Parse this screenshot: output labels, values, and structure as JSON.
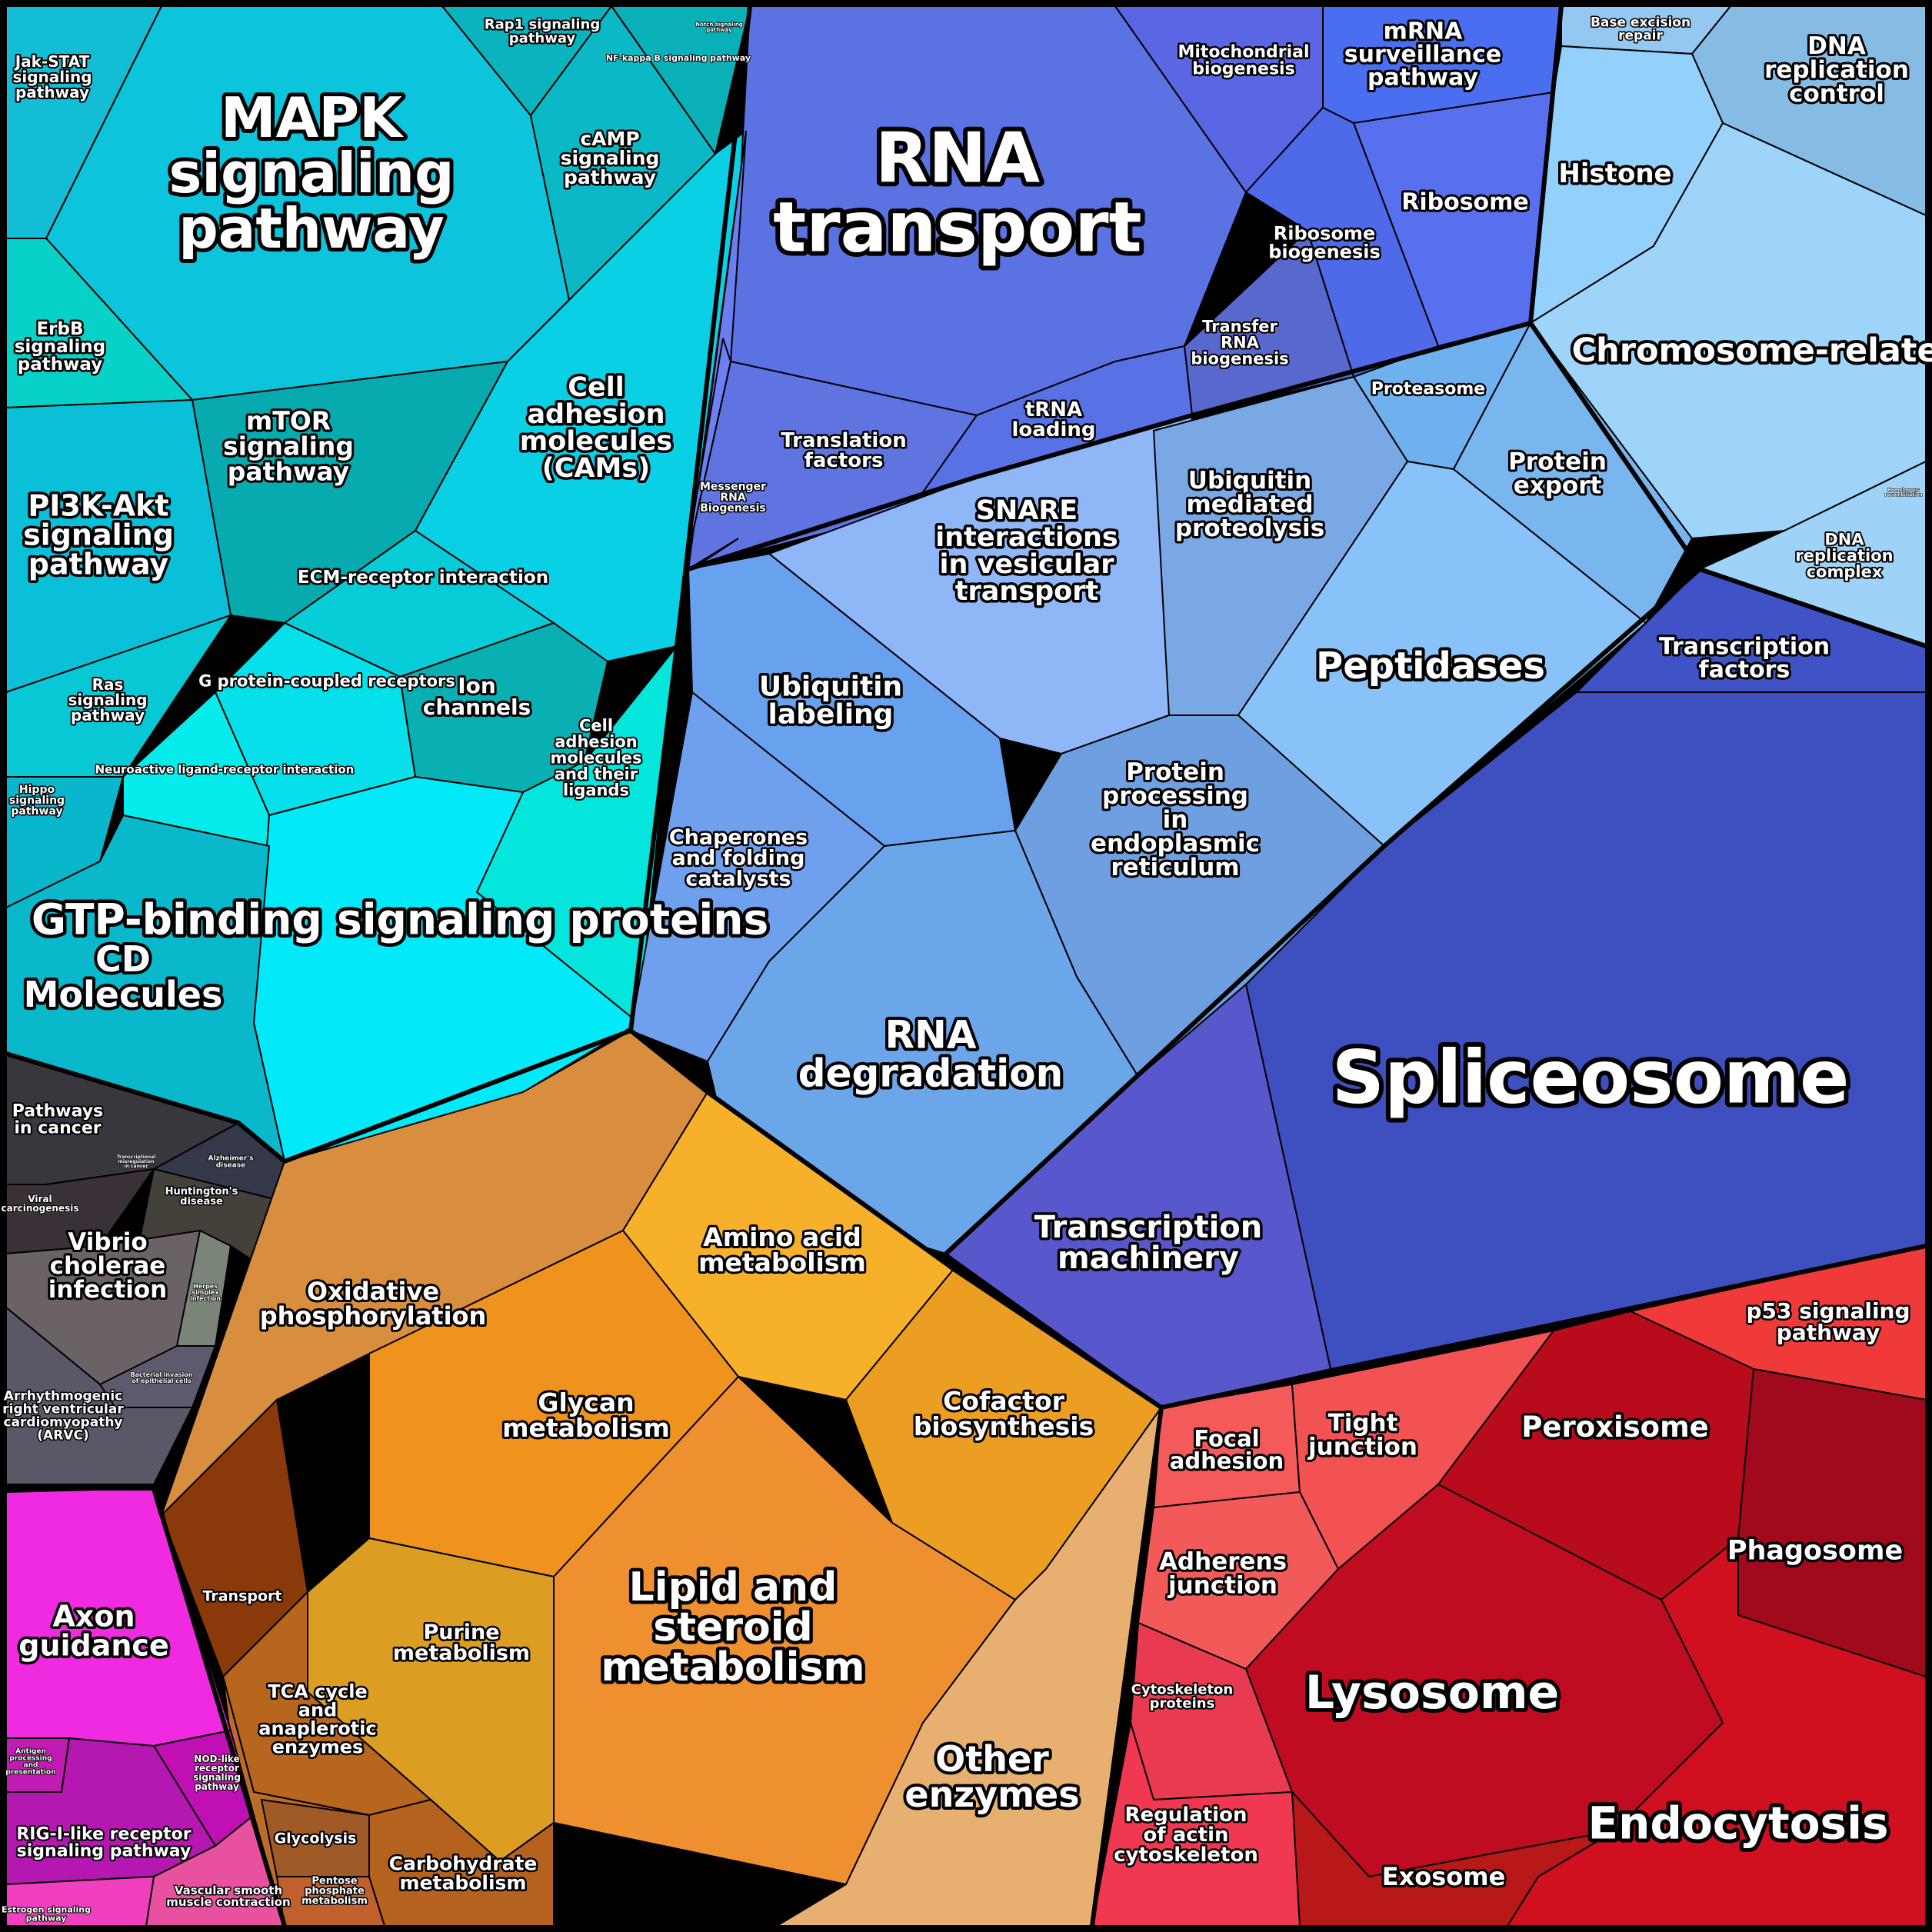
{
  "labels": {
    "mapk": "MAPK signaling pathway",
    "jak_stat": "Jak-STAT signaling pathway",
    "rap1": "Rap1 signaling pathway",
    "notch": "Notch signaling pathway",
    "nfkb": "NF-kappa B signaling pathway",
    "camp": "cAMP signaling pathway",
    "erbb": "ErbB signaling pathway",
    "mtor": "mTOR signaling pathway",
    "cams": "Cell adhesion molecules (CAMs)",
    "pi3k": "PI3K-Akt signaling pathway",
    "ecm": "ECM-receptor interaction",
    "ras": "Ras signaling pathway",
    "gpcr": "G protein-coupled receptors",
    "ion": "Ion channels",
    "neuro": "Neuroactive ligand-receptor interaction",
    "cell_adh_lig": "Cell adhesion molecules and their ligands",
    "hippo": "Hippo signaling pathway",
    "gtp": "GTP-binding signaling proteins",
    "cd": "CD Molecules",
    "rna_transport": "RNA transport",
    "mito": "Mitochondrial biogenesis",
    "mrna": "mRNA surveillance pathway",
    "ribosome": "Ribosome",
    "ribo_bio": "Ribosome biogenesis",
    "trna_bio": "Transfer RNA biogenesis",
    "trans_factors": "Translation factors",
    "trna_load": "tRNA loading",
    "messenger": "Messenger RNA Biogenesis",
    "proteasome": "Proteasome",
    "snare": "SNARE interactions in vesicular transport",
    "ubiq_med": "Ubiquitin mediated proteolysis",
    "ubiq_lab": "Ubiquitin labeling",
    "chaperones": "Chaperones and folding catalysts",
    "protein_er": "Protein processing in endoplasmic reticulum",
    "rna_deg": "RNA degradation",
    "peptidases": "Peptidases",
    "protein_export": "Protein export",
    "base_exc": "Base excision repair",
    "dna_ctrl": "DNA replication control",
    "histone": "Histone",
    "chromosome": "Chromosome-related",
    "homol": "Homologous recombination",
    "dna_complex": "DNA replication complex",
    "tf": "Transcription factors",
    "spliceosome": "Spliceosome",
    "trans_mach": "Transcription machinery",
    "cancer": "Pathways in cancer",
    "trans_misreg": "Transcriptional misregulation in cancer",
    "alzheimer": "Alzheimer's disease",
    "viral": "Viral carcinogenesis",
    "huntington": "Huntington's disease",
    "vibrio": "Vibrio cholerae infection",
    "herpes": "Herpes simplex infection",
    "bacterial": "Bacterial invasion of epithelial cells",
    "arvc": "Arrhythmogenic right ventricular cardiomyopathy (ARVC)",
    "oxphos": "Oxidative phosphorylation",
    "amino": "Amino acid metabolism",
    "glycan": "Glycan metabolism",
    "cofactor": "Cofactor biosynthesis",
    "transport": "Transport",
    "purine": "Purine metabolism",
    "lipid": "Lipid and steroid metabolism",
    "tca": "TCA cycle and anaplerotic enzymes",
    "other_enz": "Other enzymes",
    "glycolysis": "Glycolysis",
    "carbo": "Carbohydrate metabolism",
    "pentose": "Pentose phosphate metabolism",
    "axon": "Axon guidance",
    "antigen": "Antigen processing and presentation",
    "nod": "NOD-like receptor signaling pathway",
    "rigi": "RIG-I-like receptor signaling pathway",
    "vascular": "Vascular smooth muscle contraction",
    "estrogen": "Estrogen signaling pathway",
    "focal": "Focal adhesion",
    "tight": "Tight junction",
    "p53": "p53 signaling pathway",
    "peroxisome": "Peroxisome",
    "phagosome": "Phagosome",
    "adherens": "Adherens junction",
    "lysosome": "Lysosome",
    "cytoskel": "Cytoskeleton proteins",
    "reg_actin": "Regulation of actin cytoskeleton",
    "endocytosis": "Endocytosis",
    "exosome": "Exosome"
  },
  "colors": {
    "signaling": "#00c2dc",
    "rna": "#5b6fe0",
    "protein": "#6fa3ee",
    "dna": "#8ccaf2",
    "spliceosome": "#3f4fbf",
    "disease": "#5a5560",
    "metabolism": "#ee9a2a",
    "immune": "#e030d0",
    "cellular": "#c0101e"
  }
}
